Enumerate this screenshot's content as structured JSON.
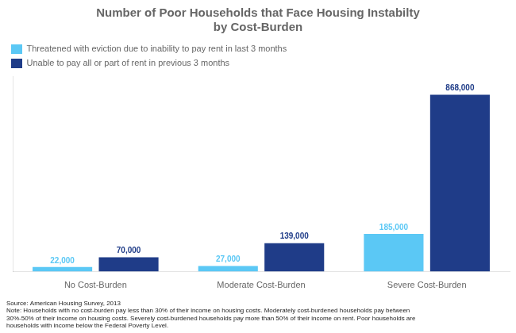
{
  "chart_data": {
    "type": "bar",
    "title": "Number of Poor Households that Face Housing Instabilty\nby Cost-Burden",
    "categories": [
      "No Cost-Burden",
      "Moderate Cost-Burden",
      "Severe Cost-Burden"
    ],
    "series": [
      {
        "name": "Threatened with eviction due to inability to pay rent in last 3 months",
        "color": "#5BC8F5",
        "values": [
          22000,
          27000,
          185000
        ],
        "value_labels": [
          "22,000",
          "27,000",
          "185,000"
        ]
      },
      {
        "name": "Unable to pay all or part of rent in previous 3 months",
        "color": "#1F3C88",
        "values": [
          70000,
          139000,
          868000
        ],
        "value_labels": [
          "70,000",
          "139,000",
          "868,000"
        ]
      }
    ],
    "ylim": [
      0,
      960000
    ],
    "yticks": [],
    "grid": false,
    "legend": "top",
    "data_labels": true,
    "tick_labels": "x",
    "annotations": [
      "Source: American Housing Survey, 2013",
      "Note: Households with no cost-burden pay less than 30% of their income on housing costs. Moderately cost-burdened households pay between\n30%-50% of their income on housing costs. Severely cost-burdened households pay more than 50% of their income on rent. Poor households are\nhouseholds with income below the Federal Poverty Level."
    ]
  }
}
